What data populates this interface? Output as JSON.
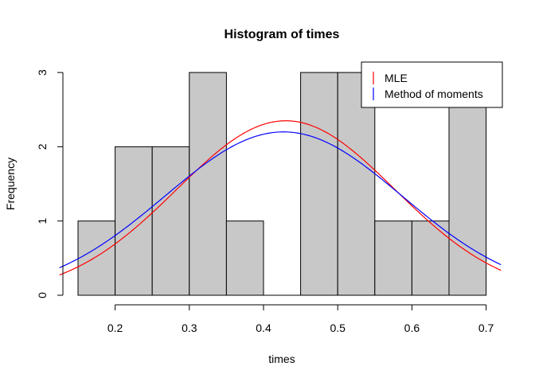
{
  "chart_data": {
    "type": "bar",
    "title": "Histogram of times",
    "xlabel": "times",
    "ylabel": "Frequency",
    "xlim": [
      0.125,
      0.72
    ],
    "ylim": [
      0,
      3
    ],
    "bins": [
      {
        "start": 0.15,
        "end": 0.2,
        "count": 1
      },
      {
        "start": 0.2,
        "end": 0.25,
        "count": 2
      },
      {
        "start": 0.25,
        "end": 0.3,
        "count": 2
      },
      {
        "start": 0.3,
        "end": 0.35,
        "count": 3
      },
      {
        "start": 0.35,
        "end": 0.4,
        "count": 1
      },
      {
        "start": 0.4,
        "end": 0.45,
        "count": 0
      },
      {
        "start": 0.45,
        "end": 0.5,
        "count": 3
      },
      {
        "start": 0.5,
        "end": 0.55,
        "count": 3
      },
      {
        "start": 0.55,
        "end": 0.6,
        "count": 1
      },
      {
        "start": 0.6,
        "end": 0.65,
        "count": 1
      },
      {
        "start": 0.65,
        "end": 0.7,
        "count": 3
      }
    ],
    "x_ticks": [
      "0.2",
      "0.3",
      "0.4",
      "0.5",
      "0.6",
      "0.7"
    ],
    "y_ticks": [
      "0",
      "1",
      "2",
      "3"
    ],
    "curves": [
      {
        "name": "MLE",
        "color": "#ff0000",
        "peak_x": 0.43,
        "peak_y": 2.35,
        "sd": 0.147
      },
      {
        "name": "Method of moments",
        "color": "#0000ff",
        "peak_x": 0.427,
        "peak_y": 2.2,
        "sd": 0.16
      }
    ],
    "bar_color": "#c8c8c8",
    "legend": {
      "position": "top-right"
    }
  }
}
